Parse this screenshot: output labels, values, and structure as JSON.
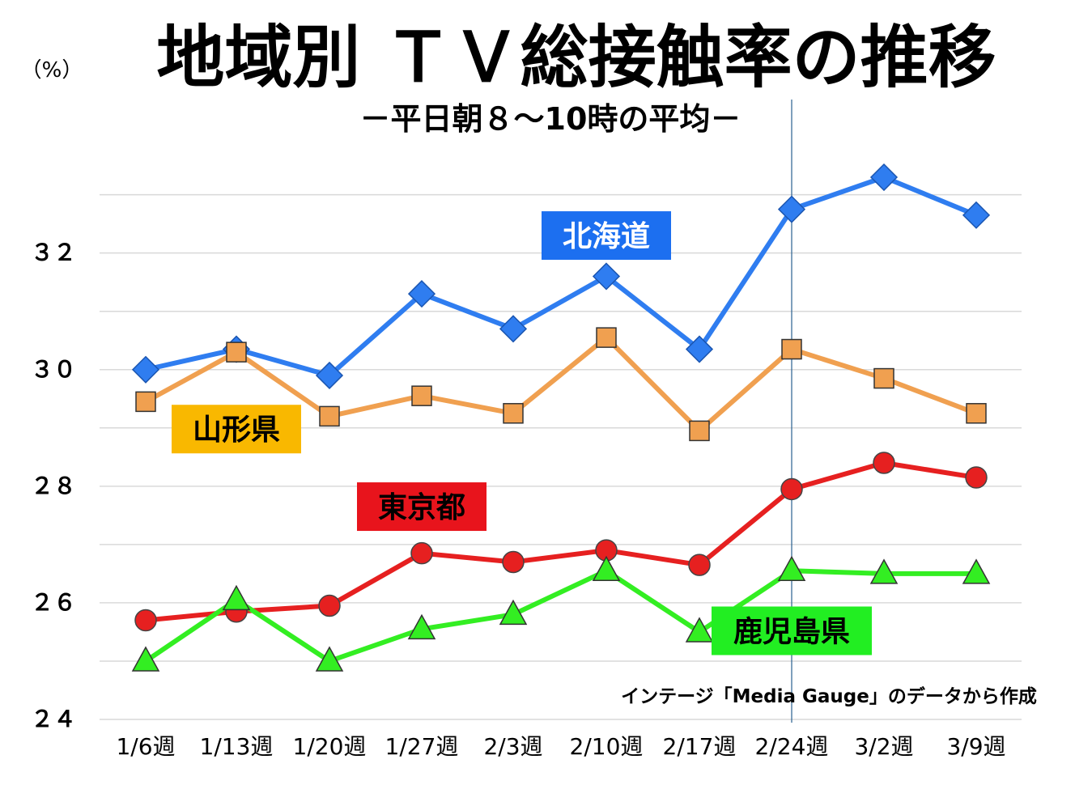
{
  "chart_data": {
    "type": "line",
    "title": "地域別 ＴＶ総接触率の推移",
    "subtitle": "－平日朝８～10時の平均－",
    "ylabel": "（%）",
    "xlabel": "",
    "source": "インテージ「Media Gauge」のデータから作成",
    "categories": [
      "1/6週",
      "1/13週",
      "1/20週",
      "1/27週",
      "2/3週",
      "2/10週",
      "2/17週",
      "2/24週",
      "3/2週",
      "3/9週"
    ],
    "ylim": [
      24,
      33.8
    ],
    "yticks": [
      {
        "value": 24,
        "label": "２４"
      },
      {
        "value": 26,
        "label": "２６"
      },
      {
        "value": 28,
        "label": "２８"
      },
      {
        "value": 30,
        "label": "３０"
      },
      {
        "value": 32,
        "label": "３２"
      }
    ],
    "gridlines": [
      25,
      26,
      27,
      28,
      29,
      30,
      31,
      32,
      33
    ],
    "marker_line_category": "2/24週",
    "series": [
      {
        "name": "北海道",
        "color": "#2f7df0",
        "marker": "diamond",
        "label_bg": "#1c6ff0",
        "label_fg": "#ffffff",
        "label_anchor": {
          "x": "2/10週",
          "y": 32.3
        },
        "values": [
          30.0,
          30.35,
          29.9,
          31.3,
          30.7,
          31.6,
          30.35,
          32.75,
          33.3,
          32.65
        ]
      },
      {
        "name": "山形県",
        "color": "#f0a050",
        "marker": "square",
        "label_bg": "#f9b800",
        "label_fg": "#000000",
        "label_anchor": {
          "x": "1/13週",
          "y": 28.98
        },
        "values": [
          29.45,
          30.3,
          29.2,
          29.55,
          29.25,
          30.55,
          28.95,
          30.35,
          29.85,
          29.25
        ]
      },
      {
        "name": "東京都",
        "color": "#e62020",
        "marker": "circle",
        "label_bg": "#e8141c",
        "label_fg": "#000000",
        "label_anchor": {
          "x": "1/27週",
          "y": 27.65
        },
        "values": [
          25.7,
          25.85,
          25.95,
          26.85,
          26.7,
          26.9,
          26.65,
          27.95,
          28.4,
          28.15
        ]
      },
      {
        "name": "鹿児島県",
        "color": "#33ee22",
        "marker": "triangle",
        "label_bg": "#22ee22",
        "label_fg": "#000000",
        "label_anchor": {
          "x": "2/24週",
          "y": 25.52
        },
        "values": [
          25.0,
          26.05,
          25.0,
          25.55,
          25.8,
          26.55,
          25.5,
          26.55,
          26.5,
          26.5
        ]
      }
    ]
  }
}
